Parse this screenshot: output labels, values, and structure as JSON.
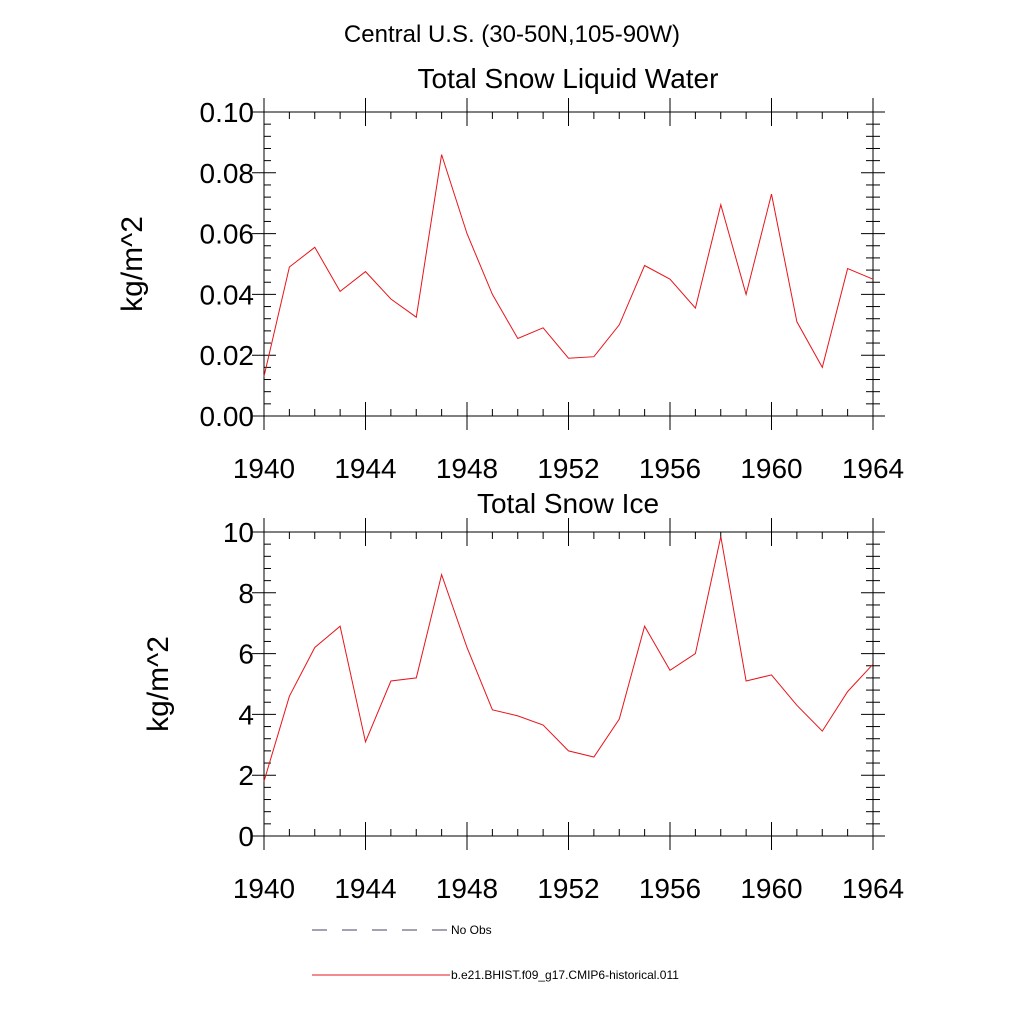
{
  "super_title": "Central U.S. (30-50N,105-90W)",
  "legend": [
    {
      "label": "No Obs",
      "style": "dashed",
      "color": "#444466"
    },
    {
      "label": "b.e21.BHIST.f09_g17.CMIP6-historical.011",
      "style": "solid",
      "color": "#e8141b"
    }
  ],
  "chart_data": [
    {
      "type": "line",
      "title": "Total Snow Liquid Water",
      "xlabel": "",
      "ylabel": "kg/m^2",
      "xlim": [
        1940,
        1964
      ],
      "ylim": [
        0,
        0.1
      ],
      "x_ticks": [
        1940,
        1944,
        1948,
        1952,
        1956,
        1960,
        1964
      ],
      "x_tick_labels": [
        "1940",
        "1944",
        "1948",
        "1952",
        "1956",
        "1960",
        "1964"
      ],
      "y_ticks": [
        0,
        0.02,
        0.04,
        0.06,
        0.08,
        0.1
      ],
      "y_tick_labels": [
        "0.00",
        "0.02",
        "0.04",
        "0.06",
        "0.08",
        "0.10"
      ],
      "grid": false,
      "series": [
        {
          "name": "b.e21.BHIST.f09_g17.CMIP6-historical.011",
          "color": "#e8141b",
          "x": [
            1940,
            1941,
            1942,
            1943,
            1944,
            1945,
            1946,
            1947,
            1948,
            1949,
            1950,
            1951,
            1952,
            1953,
            1954,
            1955,
            1956,
            1957,
            1958,
            1959,
            1960,
            1961,
            1962,
            1963,
            1964
          ],
          "y": [
            0.013,
            0.049,
            0.0555,
            0.041,
            0.0475,
            0.0385,
            0.0325,
            0.086,
            0.06,
            0.04,
            0.0255,
            0.029,
            0.019,
            0.0195,
            0.03,
            0.0495,
            0.045,
            0.0355,
            0.0695,
            0.04,
            0.073,
            0.031,
            0.016,
            0.0485,
            0.045
          ]
        }
      ]
    },
    {
      "type": "line",
      "title": "Total Snow Ice",
      "xlabel": "",
      "ylabel": "kg/m^2",
      "xlim": [
        1940,
        1964
      ],
      "ylim": [
        0,
        10
      ],
      "x_ticks": [
        1940,
        1944,
        1948,
        1952,
        1956,
        1960,
        1964
      ],
      "x_tick_labels": [
        "1940",
        "1944",
        "1948",
        "1952",
        "1956",
        "1960",
        "1964"
      ],
      "y_ticks": [
        0,
        2,
        4,
        6,
        8,
        10
      ],
      "y_tick_labels": [
        "0",
        "2",
        "4",
        "6",
        "8",
        "10"
      ],
      "grid": false,
      "series": [
        {
          "name": "b.e21.BHIST.f09_g17.CMIP6-historical.011",
          "color": "#e8141b",
          "x": [
            1940,
            1941,
            1942,
            1943,
            1944,
            1945,
            1946,
            1947,
            1948,
            1949,
            1950,
            1951,
            1952,
            1953,
            1954,
            1955,
            1956,
            1957,
            1958,
            1959,
            1960,
            1961,
            1962,
            1963,
            1964
          ],
          "y": [
            1.8,
            4.6,
            6.2,
            6.9,
            3.1,
            5.1,
            5.2,
            8.6,
            6.2,
            4.15,
            3.95,
            3.65,
            2.8,
            2.6,
            3.85,
            6.9,
            5.45,
            6.0,
            9.85,
            5.1,
            5.3,
            4.3,
            3.45,
            4.75,
            5.65
          ]
        }
      ]
    }
  ]
}
